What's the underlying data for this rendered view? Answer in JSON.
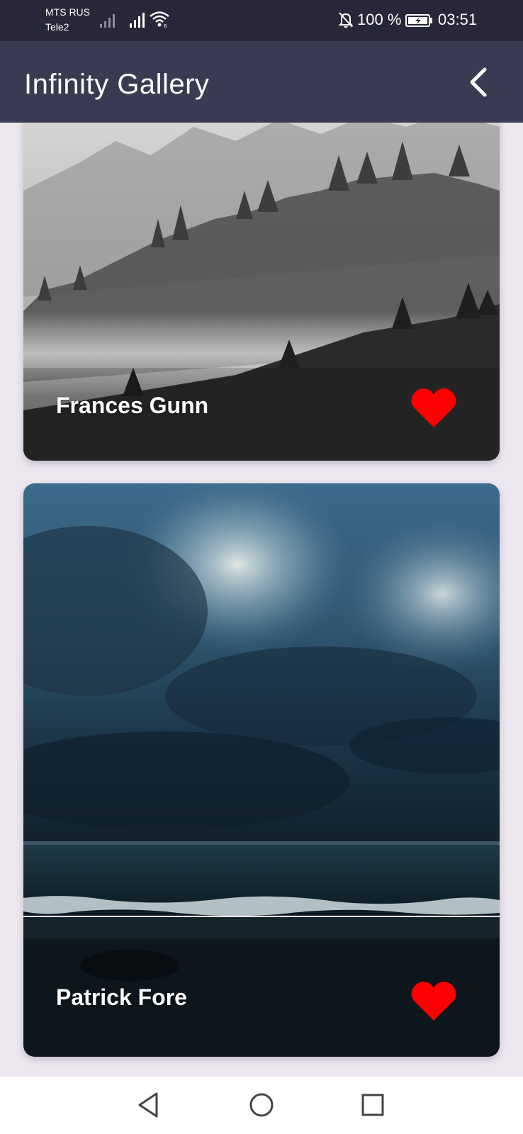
{
  "status_bar": {
    "carrier_1": "MTS RUS",
    "carrier_2": "Tele2",
    "battery_percent": "100 %",
    "time": "03:51"
  },
  "app_bar": {
    "title": "Infinity Gallery",
    "back_icon": "chevron-left-icon"
  },
  "gallery": {
    "items": [
      {
        "author": "Frances Gunn",
        "photo": "foggy-forest-bw",
        "favorite": true,
        "heart_color": "#ff0000"
      },
      {
        "author": "Patrick Fore",
        "photo": "stormy-sea-sky",
        "favorite": true,
        "heart_color": "#ff0000"
      }
    ]
  },
  "nav_bar": {
    "icons": [
      "back-triangle-icon",
      "home-circle-icon",
      "recents-square-icon"
    ]
  },
  "colors": {
    "status_bar_bg": "#272739",
    "app_bar_bg": "#3a3a52",
    "page_bg": "#ece6ef",
    "heart": "#ff0000"
  }
}
